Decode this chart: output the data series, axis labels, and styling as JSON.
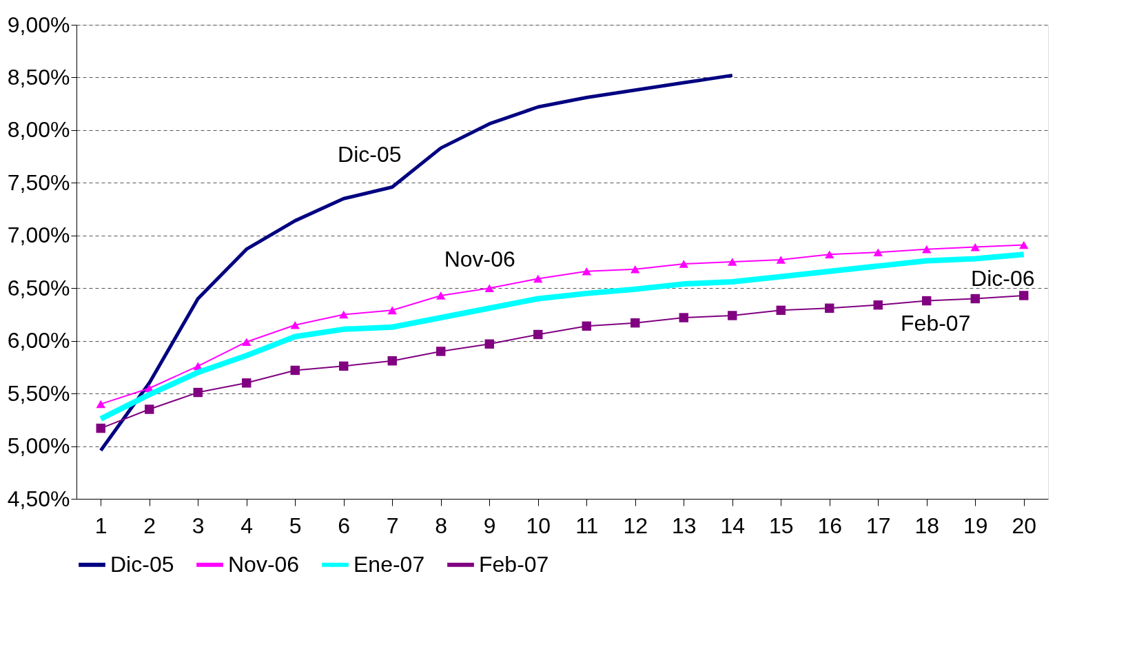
{
  "chart_data": {
    "type": "line",
    "x": [
      1,
      2,
      3,
      4,
      5,
      6,
      7,
      8,
      9,
      10,
      11,
      12,
      13,
      14,
      15,
      16,
      17,
      18,
      19,
      20
    ],
    "xlim": [
      0.5,
      20.5
    ],
    "xticks": [
      1,
      2,
      3,
      4,
      5,
      6,
      7,
      8,
      9,
      10,
      11,
      12,
      13,
      14,
      15,
      16,
      17,
      18,
      19,
      20
    ],
    "ylim": [
      4.5,
      9.0
    ],
    "yticks": [
      {
        "value": 4.5,
        "label": "4,50%"
      },
      {
        "value": 5.0,
        "label": "5,00%"
      },
      {
        "value": 5.5,
        "label": "5,50%"
      },
      {
        "value": 6.0,
        "label": "6,00%"
      },
      {
        "value": 6.5,
        "label": "6,50%"
      },
      {
        "value": 7.0,
        "label": "7,00%"
      },
      {
        "value": 7.5,
        "label": "7,50%"
      },
      {
        "value": 8.0,
        "label": "8,00%"
      },
      {
        "value": 8.5,
        "label": "8,50%"
      },
      {
        "value": 9.0,
        "label": "9,00%"
      }
    ],
    "grid": "y",
    "legend": "bottom",
    "series": [
      {
        "name": "Dic-05",
        "color": "#000080",
        "marker": "none",
        "values": [
          4.96,
          5.6,
          6.4,
          6.87,
          7.14,
          7.35,
          7.46,
          7.83,
          8.06,
          8.22,
          8.31,
          8.38,
          8.45,
          8.52,
          null,
          null,
          null,
          null,
          null,
          null
        ]
      },
      {
        "name": "Nov-06",
        "color": "#ff00ff",
        "marker": "triangle",
        "values": [
          5.4,
          5.55,
          5.76,
          5.99,
          6.15,
          6.25,
          6.29,
          6.43,
          6.5,
          6.59,
          6.66,
          6.68,
          6.73,
          6.75,
          6.77,
          6.82,
          6.84,
          6.87,
          6.89,
          6.91
        ]
      },
      {
        "name": "Ene-07",
        "color": "#00ffff",
        "marker": "none",
        "values": [
          5.26,
          5.49,
          5.7,
          5.86,
          6.04,
          6.11,
          6.13,
          6.22,
          6.31,
          6.4,
          6.45,
          6.49,
          6.54,
          6.56,
          6.61,
          6.66,
          6.71,
          6.76,
          6.78,
          6.82
        ]
      },
      {
        "name": "Feb-07",
        "color": "#800080",
        "marker": "square",
        "values": [
          5.17,
          5.35,
          5.51,
          5.6,
          5.72,
          5.76,
          5.81,
          5.9,
          5.97,
          6.06,
          6.14,
          6.17,
          6.22,
          6.24,
          6.29,
          6.31,
          6.34,
          6.38,
          6.4,
          6.43
        ]
      }
    ],
    "annotations": [
      {
        "text": "Dic-05",
        "x": 7,
        "y": 7.46
      },
      {
        "text": "Nov-06",
        "x": 9,
        "y": 6.5
      },
      {
        "text": "Dic-06",
        "x": 19,
        "y": 6.78
      },
      {
        "text": "Feb-07",
        "x": 18,
        "y": 6.38
      }
    ]
  }
}
